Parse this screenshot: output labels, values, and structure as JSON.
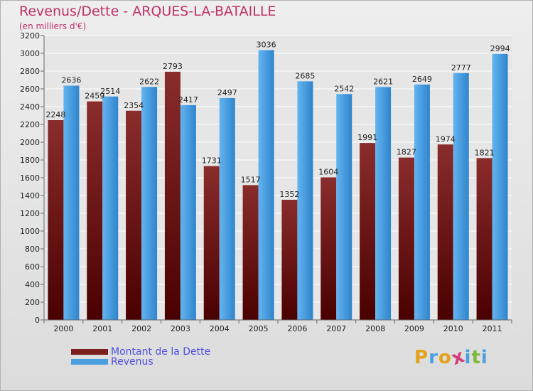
{
  "chart_data": {
    "type": "bar",
    "title": "Revenus/Dette - ARQUES-LA-BATAILLE",
    "subtitle": "(en milliers d'€)",
    "categories": [
      "2000",
      "2001",
      "2002",
      "2003",
      "2004",
      "2005",
      "2006",
      "2007",
      "2008",
      "2009",
      "2010",
      "2011"
    ],
    "series": [
      {
        "name": "Montant de la Dette",
        "color": "#7a1e1e",
        "values": [
          2248,
          2459,
          2354,
          2793,
          1731,
          1517,
          1352,
          1604,
          1991,
          1827,
          1974,
          1821
        ],
        "labels": [
          "2248",
          "2459",
          "2354",
          "2793",
          "1731",
          "1517",
          "1352",
          "1604",
          "1991",
          "1827",
          "1974",
          "1821"
        ]
      },
      {
        "name": "Revenus",
        "color": "#4a9fe0",
        "values": [
          2636,
          2514,
          2622,
          2417,
          2497,
          3036,
          2685,
          2542,
          2621,
          2649,
          2777,
          2994
        ],
        "labels": [
          "2636",
          "2514",
          "2622",
          "2417",
          "2497",
          "3036",
          "2685",
          "2542",
          "2621",
          "2649",
          "2777",
          "2994"
        ]
      }
    ],
    "ylim": [
      0,
      3200
    ],
    "ytick_step": 200,
    "grid": true,
    "legend_position": "bottom-left"
  },
  "logo": {
    "text": "Proxiti",
    "letter_colors": [
      "#e3a21a",
      "#4aa0e0",
      "#e3a21a",
      "#d63a7a",
      "#4aa0e0",
      "#7cb83a",
      "#4aa0e0"
    ]
  }
}
